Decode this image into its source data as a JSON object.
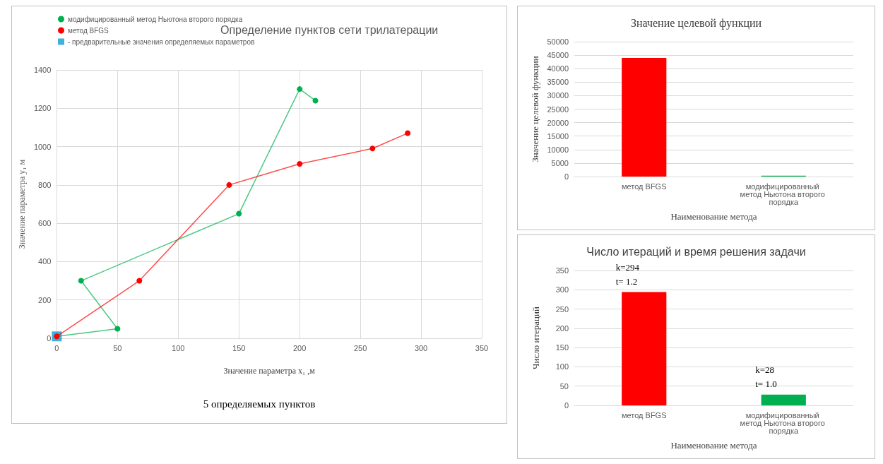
{
  "chart_data": [
    {
      "type": "line",
      "title": "Определение пунктов сети трилатерации",
      "xlabel": "Значение параметра x₁ ,м",
      "ylabel": "Значение параметра y₁ м",
      "xlim": [
        0,
        350
      ],
      "xticks": [
        0,
        50,
        100,
        150,
        200,
        250,
        300,
        350
      ],
      "ylim": [
        0,
        1400
      ],
      "yticks": [
        0,
        200,
        400,
        600,
        800,
        1000,
        1200,
        1400
      ],
      "grid": true,
      "legend": "top left",
      "marker": "circle",
      "line_style": "solid",
      "annotations": [
        "5 определяемых пунктов"
      ],
      "series": [
        {
          "name": "модифицированный метод Ньютона второго порядка",
          "color": "#00b050",
          "x": [
            0,
            50,
            20,
            150,
            200,
            213
          ],
          "values": [
            10,
            50,
            300,
            650,
            1300,
            1240
          ]
        },
        {
          "name": "метод BFGS",
          "color": "#ff0000",
          "x": [
            0,
            68,
            142,
            200,
            260,
            289
          ],
          "values": [
            10,
            300,
            800,
            910,
            990,
            1070
          ]
        },
        {
          "name": "- предварительные значения определяемых параметров",
          "type": "scatter",
          "marker": "square",
          "color": "#0f9ed5",
          "x": [
            0
          ],
          "values": [
            10
          ]
        }
      ]
    },
    {
      "type": "bar",
      "title": "Значение целевой функции",
      "xlabel": "Наименование метода",
      "ylabel": "Значение целевой функции",
      "categories": [
        "метод BFGS",
        "модифицированный метод Ньютона второго порядка"
      ],
      "values": [
        44000,
        300
      ],
      "colors": [
        "#ff0000",
        "#00b050"
      ],
      "ylim": [
        0,
        50000
      ],
      "yticks": [
        0,
        5000,
        10000,
        15000,
        20000,
        25000,
        30000,
        35000,
        40000,
        45000,
        50000
      ],
      "grid": "y"
    },
    {
      "type": "bar",
      "title": "Число итераций и время решения задачи",
      "xlabel": "Наименование метода",
      "ylabel": "Число итераций",
      "categories": [
        "метод BFGS",
        "модифицированный метод Ньютона второго порядка"
      ],
      "values": [
        294,
        28
      ],
      "colors": [
        "#ff0000",
        "#00b050"
      ],
      "value_labels": [
        "k=294\nt= 1.2",
        "k=28\nt= 1.0"
      ],
      "ylim": [
        0,
        350
      ],
      "yticks": [
        0,
        50,
        100,
        150,
        200,
        250,
        300,
        350
      ],
      "grid": "y"
    }
  ]
}
